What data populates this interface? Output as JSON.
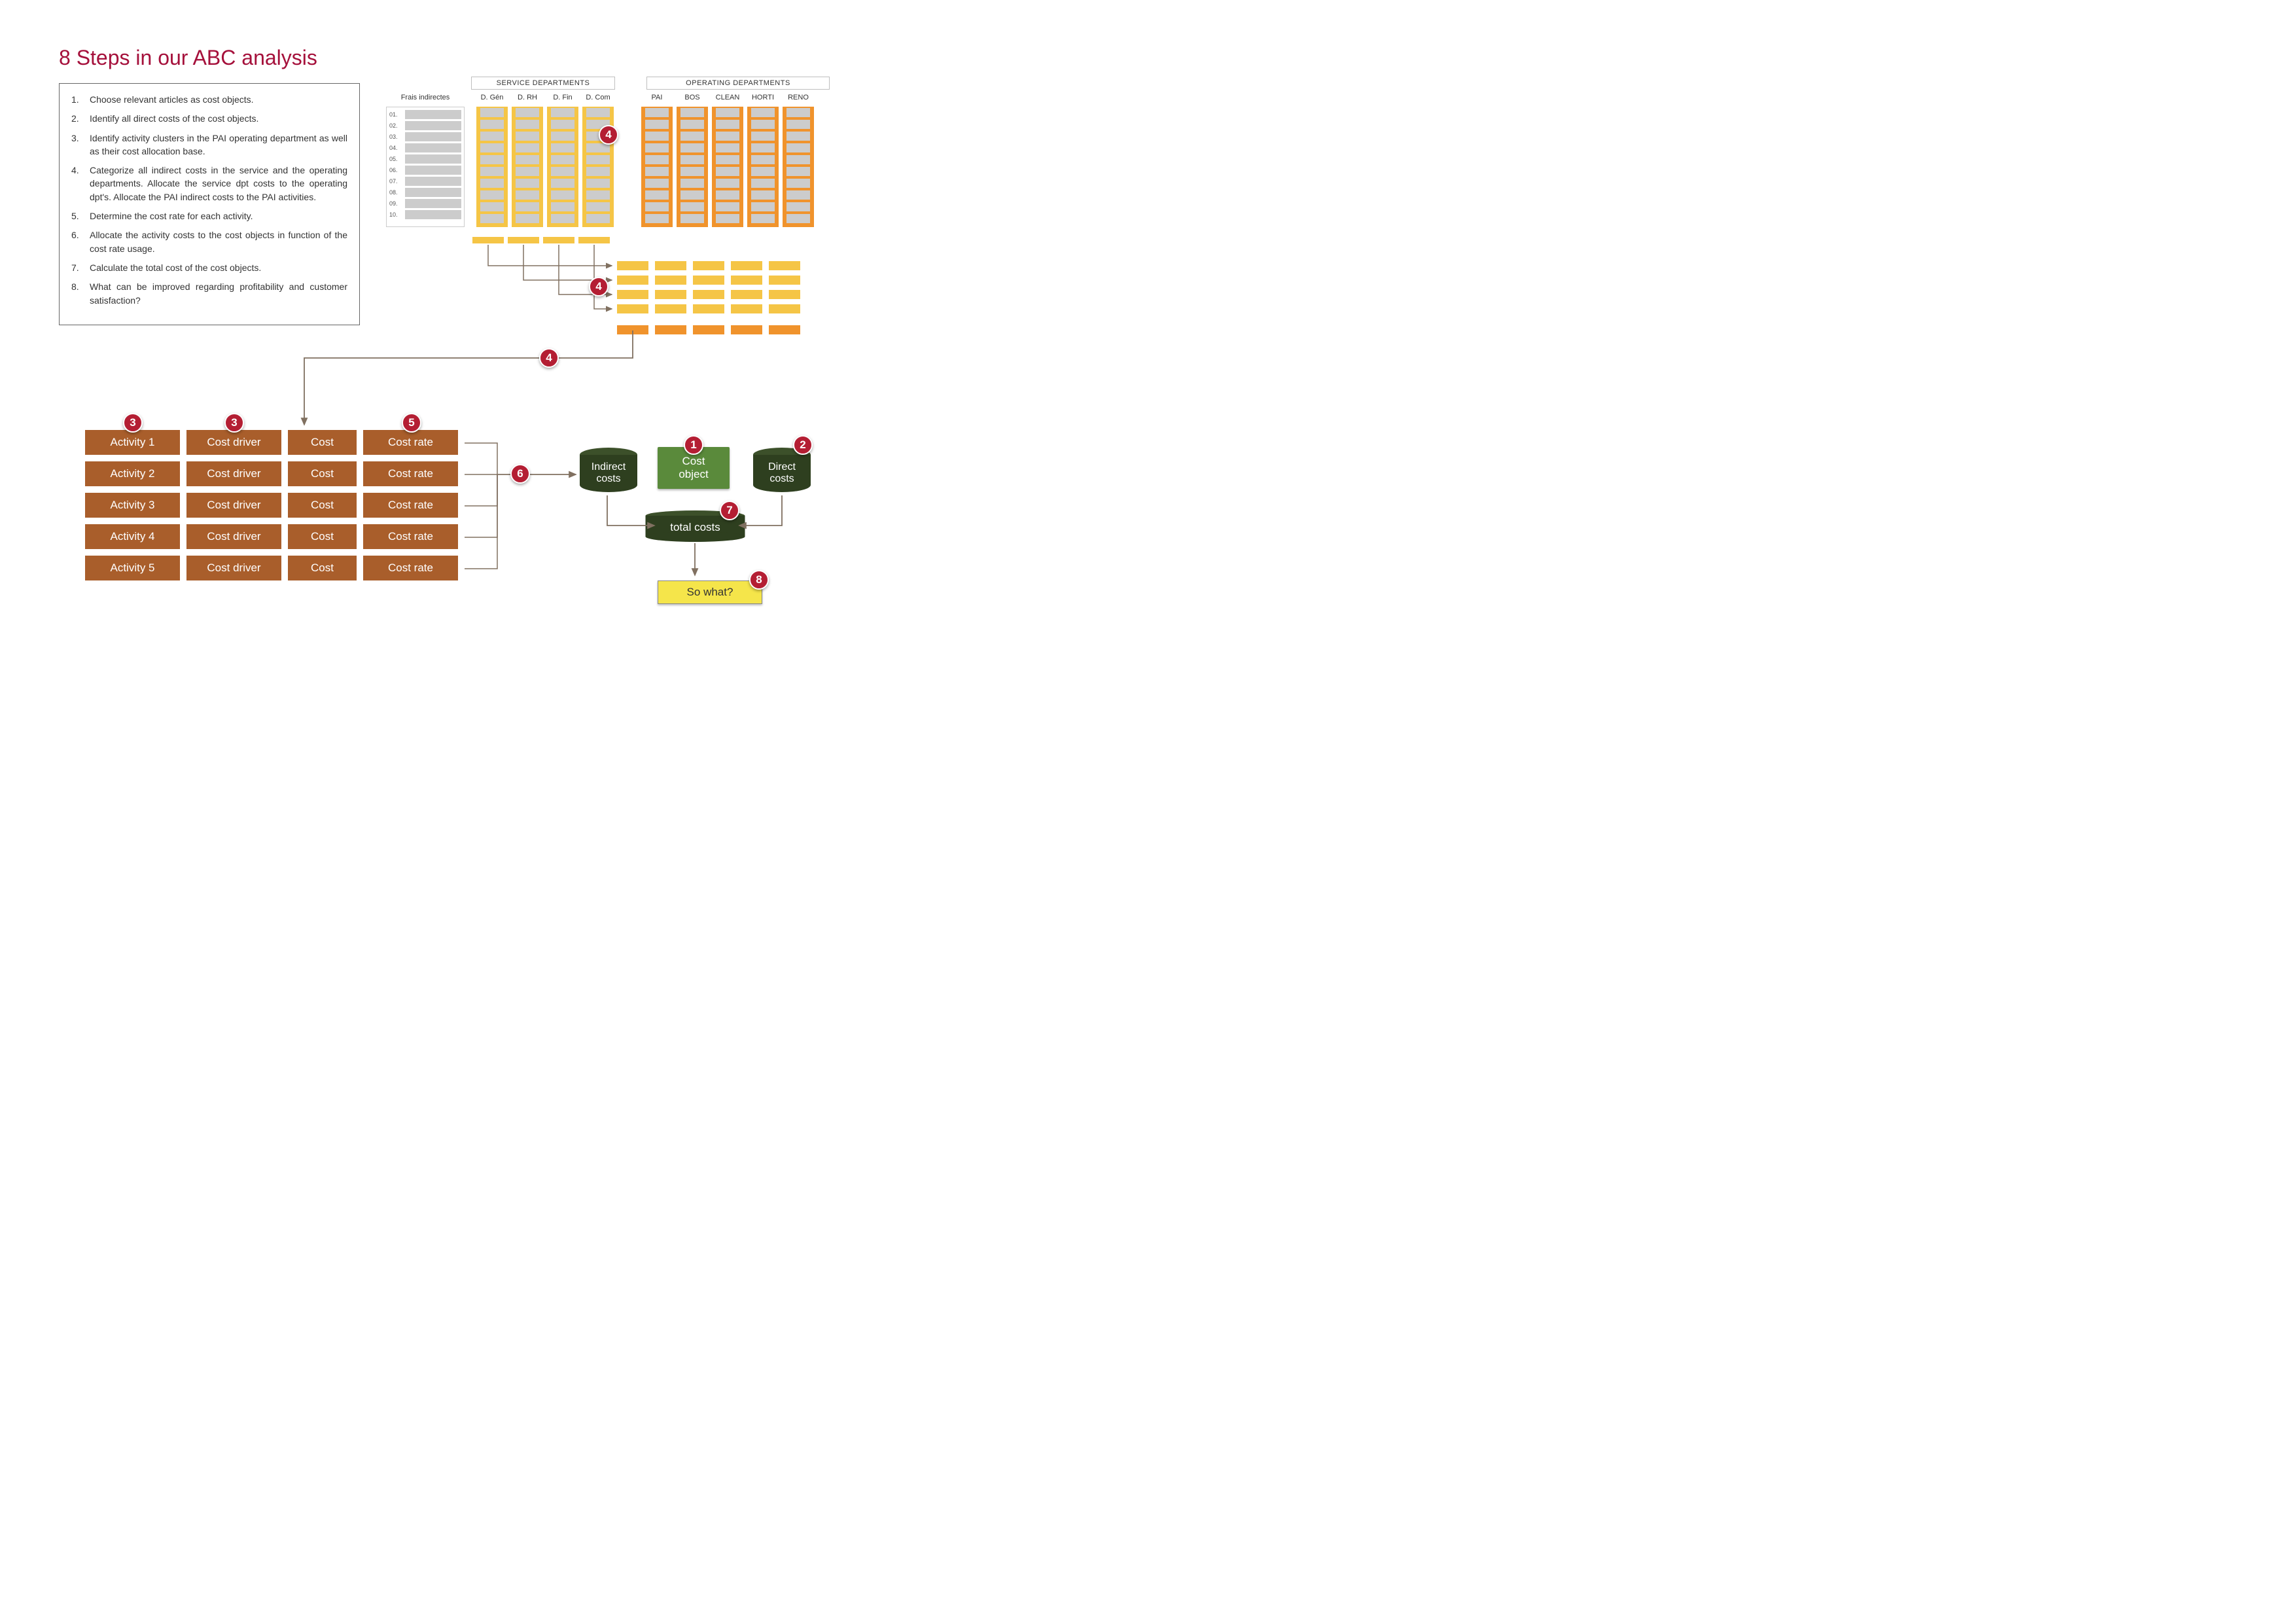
{
  "title": "8 Steps in our ABC analysis",
  "steps": [
    "Choose relevant articles as cost objects.",
    "Identify all direct costs of the cost objects.",
    "Identify activity clusters in the PAI operating department as well as their cost allocation base.",
    "Categorize all indirect costs in the service and the operating departments. Allocate the service dpt costs to the operating dpt's. Allocate the PAI indirect costs to the PAI activities.",
    "Determine the cost rate for each activity.",
    "Allocate the activity costs to the cost objects in function of the cost rate usage.",
    "Calculate the total cost of the cost objects.",
    "What can be improved regarding profitability and customer satisfaction?"
  ],
  "indirect_label": "Frais indirectes",
  "indirect_rows": [
    "01.",
    "02.",
    "03.",
    "04.",
    "05.",
    "06.",
    "07.",
    "08.",
    "09.",
    "10."
  ],
  "service_header": "SERVICE DEPARTMENTS",
  "operating_header": "OPERATING DEPARTMENTS",
  "service_cols": [
    "D. Gén",
    "D. RH",
    "D. Fin",
    "D. Com"
  ],
  "operating_cols": [
    "PAI",
    "BOS",
    "CLEAN",
    "HORTI",
    "RENO"
  ],
  "activity_rows": [
    {
      "activity": "Activity 1",
      "driver": "Cost driver",
      "cost": "Cost",
      "rate": "Cost rate"
    },
    {
      "activity": "Activity 2",
      "driver": "Cost driver",
      "cost": "Cost",
      "rate": "Cost rate"
    },
    {
      "activity": "Activity 3",
      "driver": "Cost driver",
      "cost": "Cost",
      "rate": "Cost rate"
    },
    {
      "activity": "Activity 4",
      "driver": "Cost driver",
      "cost": "Cost",
      "rate": "Cost rate"
    },
    {
      "activity": "Activity 5",
      "driver": "Cost driver",
      "cost": "Cost",
      "rate": "Cost rate"
    }
  ],
  "indirect_costs_label": "Indirect\ncosts",
  "cost_object_label": "Cost\nobject",
  "direct_costs_label": "Direct\ncosts",
  "total_costs_label": "total costs",
  "so_what_label": "So what?",
  "badges": {
    "b1": "1",
    "b2": "2",
    "b3a": "3",
    "b3b": "3",
    "b4a": "4",
    "b4b": "4",
    "b4c": "4",
    "b5": "5",
    "b6": "6",
    "b7": "7",
    "b8": "8"
  },
  "colors": {
    "badge_bg": "#b41e33",
    "title": "#a5103b",
    "brown": "#a95e2b",
    "yellow": "#f5c546",
    "orange": "#f0932c",
    "grey": "#cccccc",
    "green_box": "#5a8a3b",
    "dark_green": "#2e3f1f",
    "arrow": "#807060",
    "so_what_bg": "#f5e54a"
  }
}
